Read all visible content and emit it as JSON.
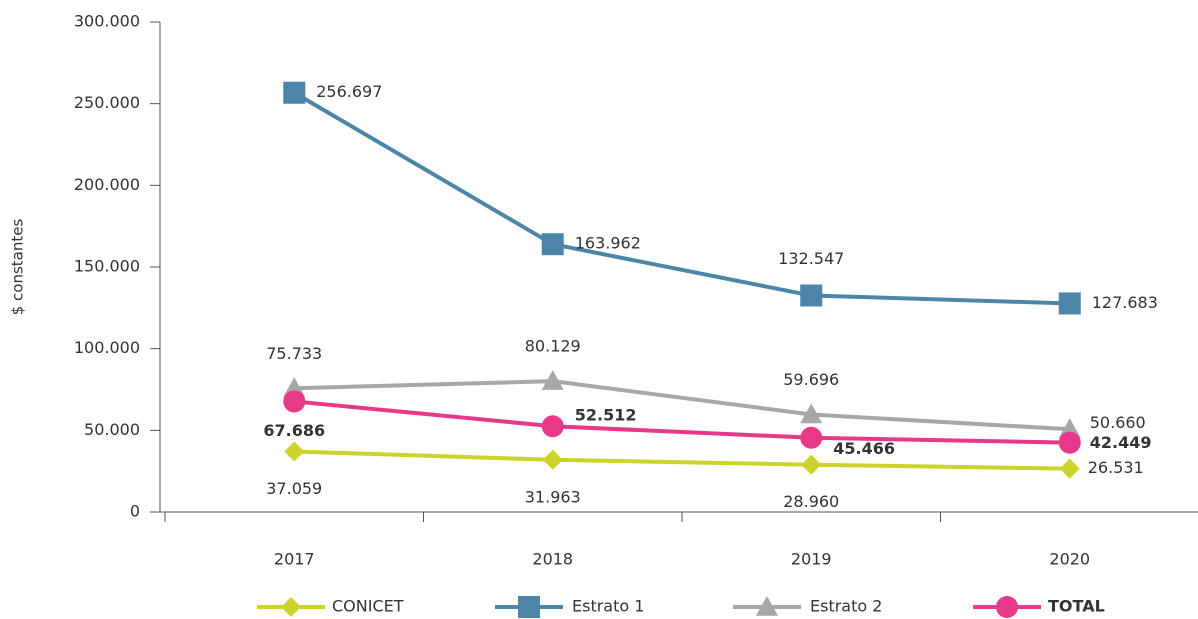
{
  "chart_data": {
    "type": "line",
    "y_label": "$ constantes",
    "categories": [
      "2017",
      "2018",
      "2019",
      "2020"
    ],
    "ylim": [
      0,
      300000
    ],
    "yticks": [
      0,
      {
        "value": 50000,
        "label": "50.000"
      },
      {
        "value": 100000,
        "label": "100.000"
      },
      {
        "value": 150000,
        "label": "150.000"
      },
      {
        "value": 200000,
        "label": "200.000"
      },
      {
        "value": 250000,
        "label": "250.000"
      },
      {
        "value": 300000,
        "label": "300.000"
      }
    ],
    "series": [
      {
        "name": "CONICET",
        "color": "#ccd32b",
        "marker": "diamond",
        "values": [
          37059,
          31963,
          28960,
          26531
        ],
        "value_labels": [
          "37.059",
          "31.963",
          "28.960",
          "26.531"
        ]
      },
      {
        "name": "Estrato 1",
        "color": "#4b86a8",
        "marker": "square",
        "values": [
          256697,
          163962,
          132547,
          127683
        ],
        "value_labels": [
          "256.697",
          "163.962",
          "132.547",
          "127.683"
        ]
      },
      {
        "name": "Estrato 2",
        "color": "#a7a7a7",
        "marker": "triangle",
        "values": [
          75733,
          80129,
          59696,
          50660
        ],
        "value_labels": [
          "75.733",
          "80.129",
          "59.696",
          "50.660"
        ]
      },
      {
        "name": "TOTAL",
        "color": "#e8388a",
        "marker": "circle",
        "values": [
          67686,
          52512,
          45466,
          42449
        ],
        "value_labels": [
          "67.686",
          "52.512",
          "45.466",
          "42.449"
        ]
      }
    ]
  }
}
